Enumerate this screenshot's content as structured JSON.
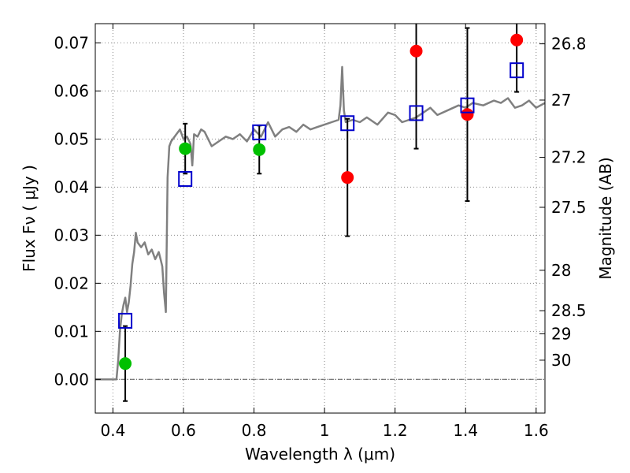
{
  "chart_data": {
    "type": "scatter",
    "xlabel": "Wavelength  λ (μm)",
    "ylabel": "Flux  Fν  ( μJy )",
    "y2label": "Magnitude (AB)",
    "xlim": [
      0.35,
      1.625
    ],
    "ylim": [
      -0.007,
      0.074
    ],
    "grid": true,
    "x_ticks": [
      {
        "value": 0.4,
        "label": "0.4"
      },
      {
        "value": 0.6,
        "label": "0.6"
      },
      {
        "value": 0.8,
        "label": "0.8"
      },
      {
        "value": 1.0,
        "label": "1"
      },
      {
        "value": 1.2,
        "label": "1.2"
      },
      {
        "value": 1.4,
        "label": "1.4"
      },
      {
        "value": 1.6,
        "label": "1.6"
      }
    ],
    "y_ticks": [
      {
        "value": 0.0,
        "label": "0.00"
      },
      {
        "value": 0.01,
        "label": "0.01"
      },
      {
        "value": 0.02,
        "label": "0.02"
      },
      {
        "value": 0.03,
        "label": "0.03"
      },
      {
        "value": 0.04,
        "label": "0.04"
      },
      {
        "value": 0.05,
        "label": "0.05"
      },
      {
        "value": 0.06,
        "label": "0.06"
      },
      {
        "value": 0.07,
        "label": "0.07"
      }
    ],
    "mag_ticks": [
      {
        "flux": 0.0698,
        "label": "26.8"
      },
      {
        "flux": 0.0581,
        "label": "27"
      },
      {
        "flux": 0.0462,
        "label": "27.2"
      },
      {
        "flux": 0.0358,
        "label": "27.5"
      },
      {
        "flux": 0.0227,
        "label": "28"
      },
      {
        "flux": 0.0143,
        "label": "28.5"
      },
      {
        "flux": 0.0095,
        "label": "29"
      },
      {
        "flux": 0.004,
        "label": "30"
      }
    ],
    "colors": {
      "model": "#808080",
      "green": "#00c000",
      "red": "#ff0000",
      "square": "#0000cc",
      "errorbar": "#000000",
      "grid": "#888888"
    },
    "model_spectrum": {
      "x": [
        0.35,
        0.4,
        0.41,
        0.415,
        0.42,
        0.425,
        0.43,
        0.435,
        0.44,
        0.445,
        0.45,
        0.455,
        0.46,
        0.465,
        0.47,
        0.48,
        0.49,
        0.5,
        0.51,
        0.52,
        0.53,
        0.535,
        0.54,
        0.545,
        0.55,
        0.555,
        0.56,
        0.565,
        0.57,
        0.58,
        0.59,
        0.6,
        0.61,
        0.62,
        0.625,
        0.63,
        0.64,
        0.65,
        0.66,
        0.67,
        0.68,
        0.7,
        0.72,
        0.74,
        0.76,
        0.78,
        0.8,
        0.82,
        0.84,
        0.86,
        0.88,
        0.9,
        0.92,
        0.94,
        0.96,
        0.98,
        1.0,
        1.02,
        1.04,
        1.045,
        1.05,
        1.055,
        1.06,
        1.08,
        1.1,
        1.12,
        1.15,
        1.18,
        1.2,
        1.22,
        1.24,
        1.26,
        1.28,
        1.3,
        1.32,
        1.35,
        1.38,
        1.4,
        1.42,
        1.45,
        1.48,
        1.5,
        1.52,
        1.54,
        1.56,
        1.58,
        1.6,
        1.625
      ],
      "y": [
        0.0,
        0.0,
        0.0,
        0.004,
        0.01,
        0.0135,
        0.0155,
        0.017,
        0.014,
        0.016,
        0.0195,
        0.024,
        0.0265,
        0.0305,
        0.0285,
        0.0275,
        0.0285,
        0.026,
        0.027,
        0.025,
        0.0265,
        0.025,
        0.0235,
        0.018,
        0.014,
        0.042,
        0.0485,
        0.0495,
        0.05,
        0.051,
        0.052,
        0.05,
        0.0505,
        0.049,
        0.0445,
        0.051,
        0.0505,
        0.052,
        0.0515,
        0.05,
        0.0485,
        0.0495,
        0.0505,
        0.05,
        0.051,
        0.0495,
        0.052,
        0.0505,
        0.0535,
        0.0505,
        0.052,
        0.0525,
        0.0515,
        0.053,
        0.052,
        0.0525,
        0.053,
        0.0535,
        0.054,
        0.057,
        0.065,
        0.056,
        0.0535,
        0.054,
        0.0535,
        0.0545,
        0.053,
        0.0555,
        0.055,
        0.0535,
        0.054,
        0.0545,
        0.0555,
        0.0565,
        0.055,
        0.056,
        0.057,
        0.0565,
        0.0575,
        0.057,
        0.058,
        0.0575,
        0.0585,
        0.0565,
        0.057,
        0.058,
        0.0565,
        0.0575
      ]
    },
    "series": [
      {
        "marker": "circle",
        "color": "#00c000",
        "points": [
          {
            "x": 0.435,
            "y": 0.0033,
            "err": 0.0078
          },
          {
            "x": 0.605,
            "y": 0.048,
            "err": 0.0052
          },
          {
            "x": 0.815,
            "y": 0.0478,
            "err": 0.005
          }
        ]
      },
      {
        "marker": "circle",
        "color": "#ff0000",
        "points": [
          {
            "x": 1.065,
            "y": 0.042,
            "err": 0.0122
          },
          {
            "x": 1.26,
            "y": 0.0683,
            "err": 0.0203
          },
          {
            "x": 1.405,
            "y": 0.0551,
            "err": 0.018
          },
          {
            "x": 1.545,
            "y": 0.0706,
            "err": 0.0108
          }
        ]
      },
      {
        "marker": "square",
        "color": "#0000cc",
        "points": [
          {
            "x": 0.435,
            "y": 0.0122
          },
          {
            "x": 0.605,
            "y": 0.0417
          },
          {
            "x": 0.815,
            "y": 0.0514
          },
          {
            "x": 1.065,
            "y": 0.0533
          },
          {
            "x": 1.26,
            "y": 0.0554
          },
          {
            "x": 1.405,
            "y": 0.057
          },
          {
            "x": 1.545,
            "y": 0.0643
          }
        ]
      }
    ]
  }
}
